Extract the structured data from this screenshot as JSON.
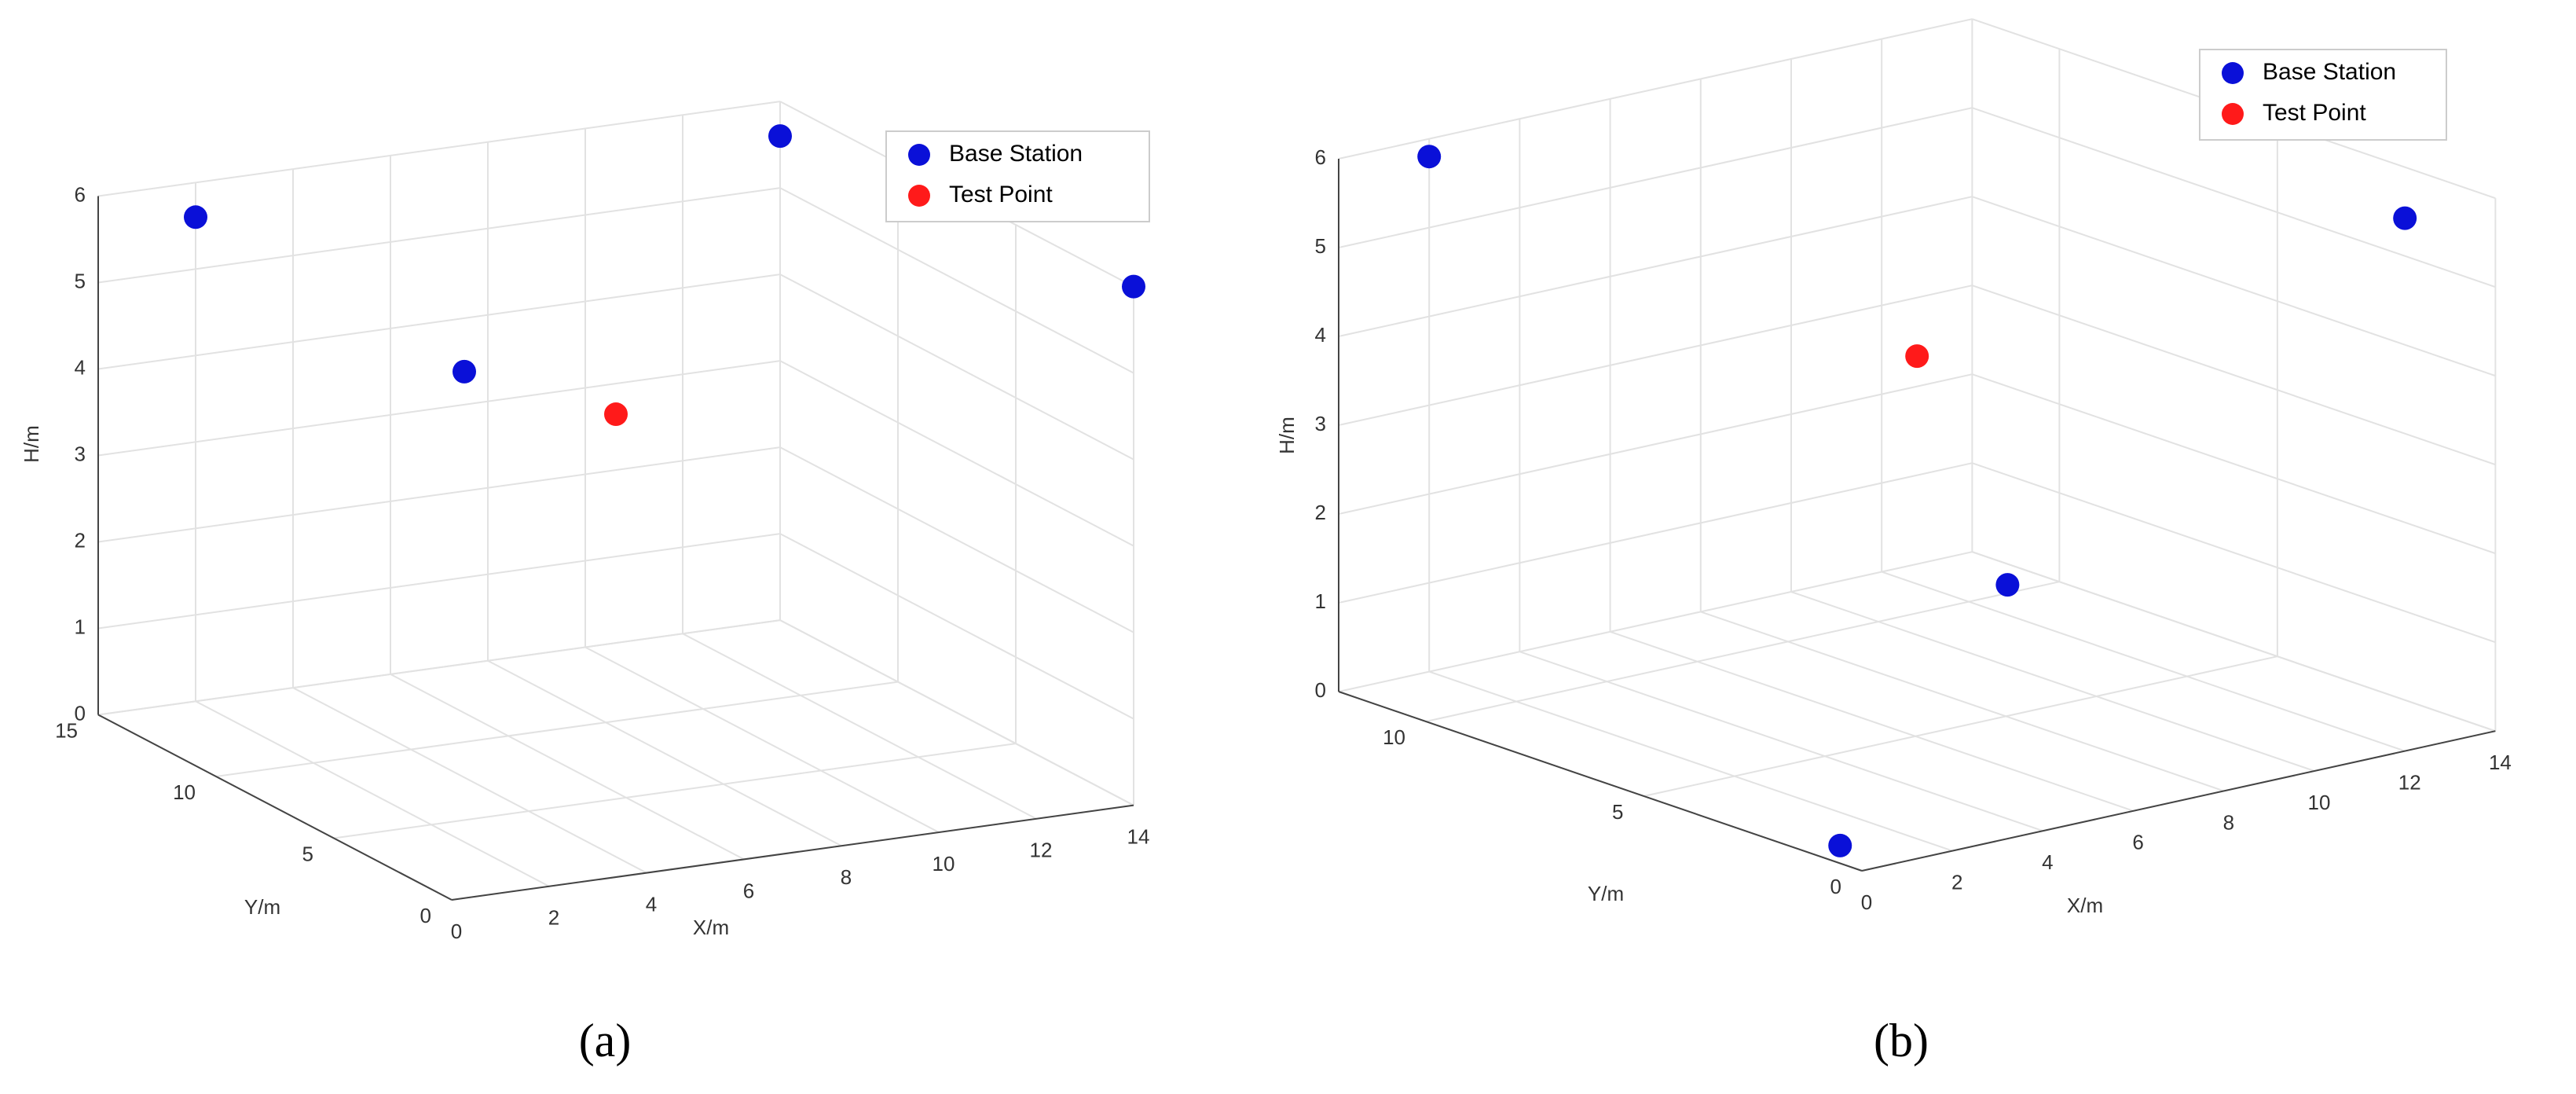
{
  "chart_data": [
    {
      "type": "scatter3d",
      "caption": "(a)",
      "x_label": "X/m",
      "y_label": "Y/m",
      "z_label": "H/m",
      "xlim": [
        0,
        14
      ],
      "ylim": [
        0,
        15
      ],
      "zlim": [
        0,
        6
      ],
      "xticks": [
        0,
        2,
        4,
        6,
        8,
        10,
        12,
        14
      ],
      "yticks": [
        0,
        5,
        10,
        15
      ],
      "zticks": [
        0,
        1,
        2,
        3,
        4,
        5,
        6
      ],
      "grid": true,
      "legend": "northeast",
      "series": [
        {
          "name": "Base Station",
          "color": "#0a10d8",
          "x": [
            2,
            14,
            0.5,
            14
          ],
          "y": [
            15,
            15,
            0.5,
            0
          ],
          "z": [
            5.6,
            5.6,
            6,
            6
          ]
        },
        {
          "name": "Test Point",
          "color": "#ff1a1a",
          "x": [
            7
          ],
          "y": [
            7.5
          ],
          "z": [
            4
          ]
        }
      ]
    },
    {
      "type": "scatter3d",
      "caption": "(b)",
      "x_label": "X/m",
      "y_label": "Y/m",
      "z_label": "H/m",
      "xlim": [
        0,
        14
      ],
      "ylim": [
        0,
        12
      ],
      "zlim": [
        0,
        6
      ],
      "xticks": [
        0,
        2,
        4,
        6,
        8,
        10,
        12,
        14
      ],
      "yticks": [
        0,
        5,
        10
      ],
      "zticks": [
        0,
        1,
        2,
        3,
        4,
        5,
        6
      ],
      "grid": true,
      "legend": "northeast",
      "series": [
        {
          "name": "Base Station",
          "color": "#0a10d8",
          "x": [
            2,
            12,
            0,
            9
          ],
          "y": [
            12,
            0,
            0.5,
            6
          ],
          "z": [
            5.8,
            6,
            0.2,
            1.2
          ]
        },
        {
          "name": "Test Point",
          "color": "#ff1a1a",
          "x": [
            7
          ],
          "y": [
            6
          ],
          "z": [
            4
          ]
        }
      ]
    }
  ]
}
